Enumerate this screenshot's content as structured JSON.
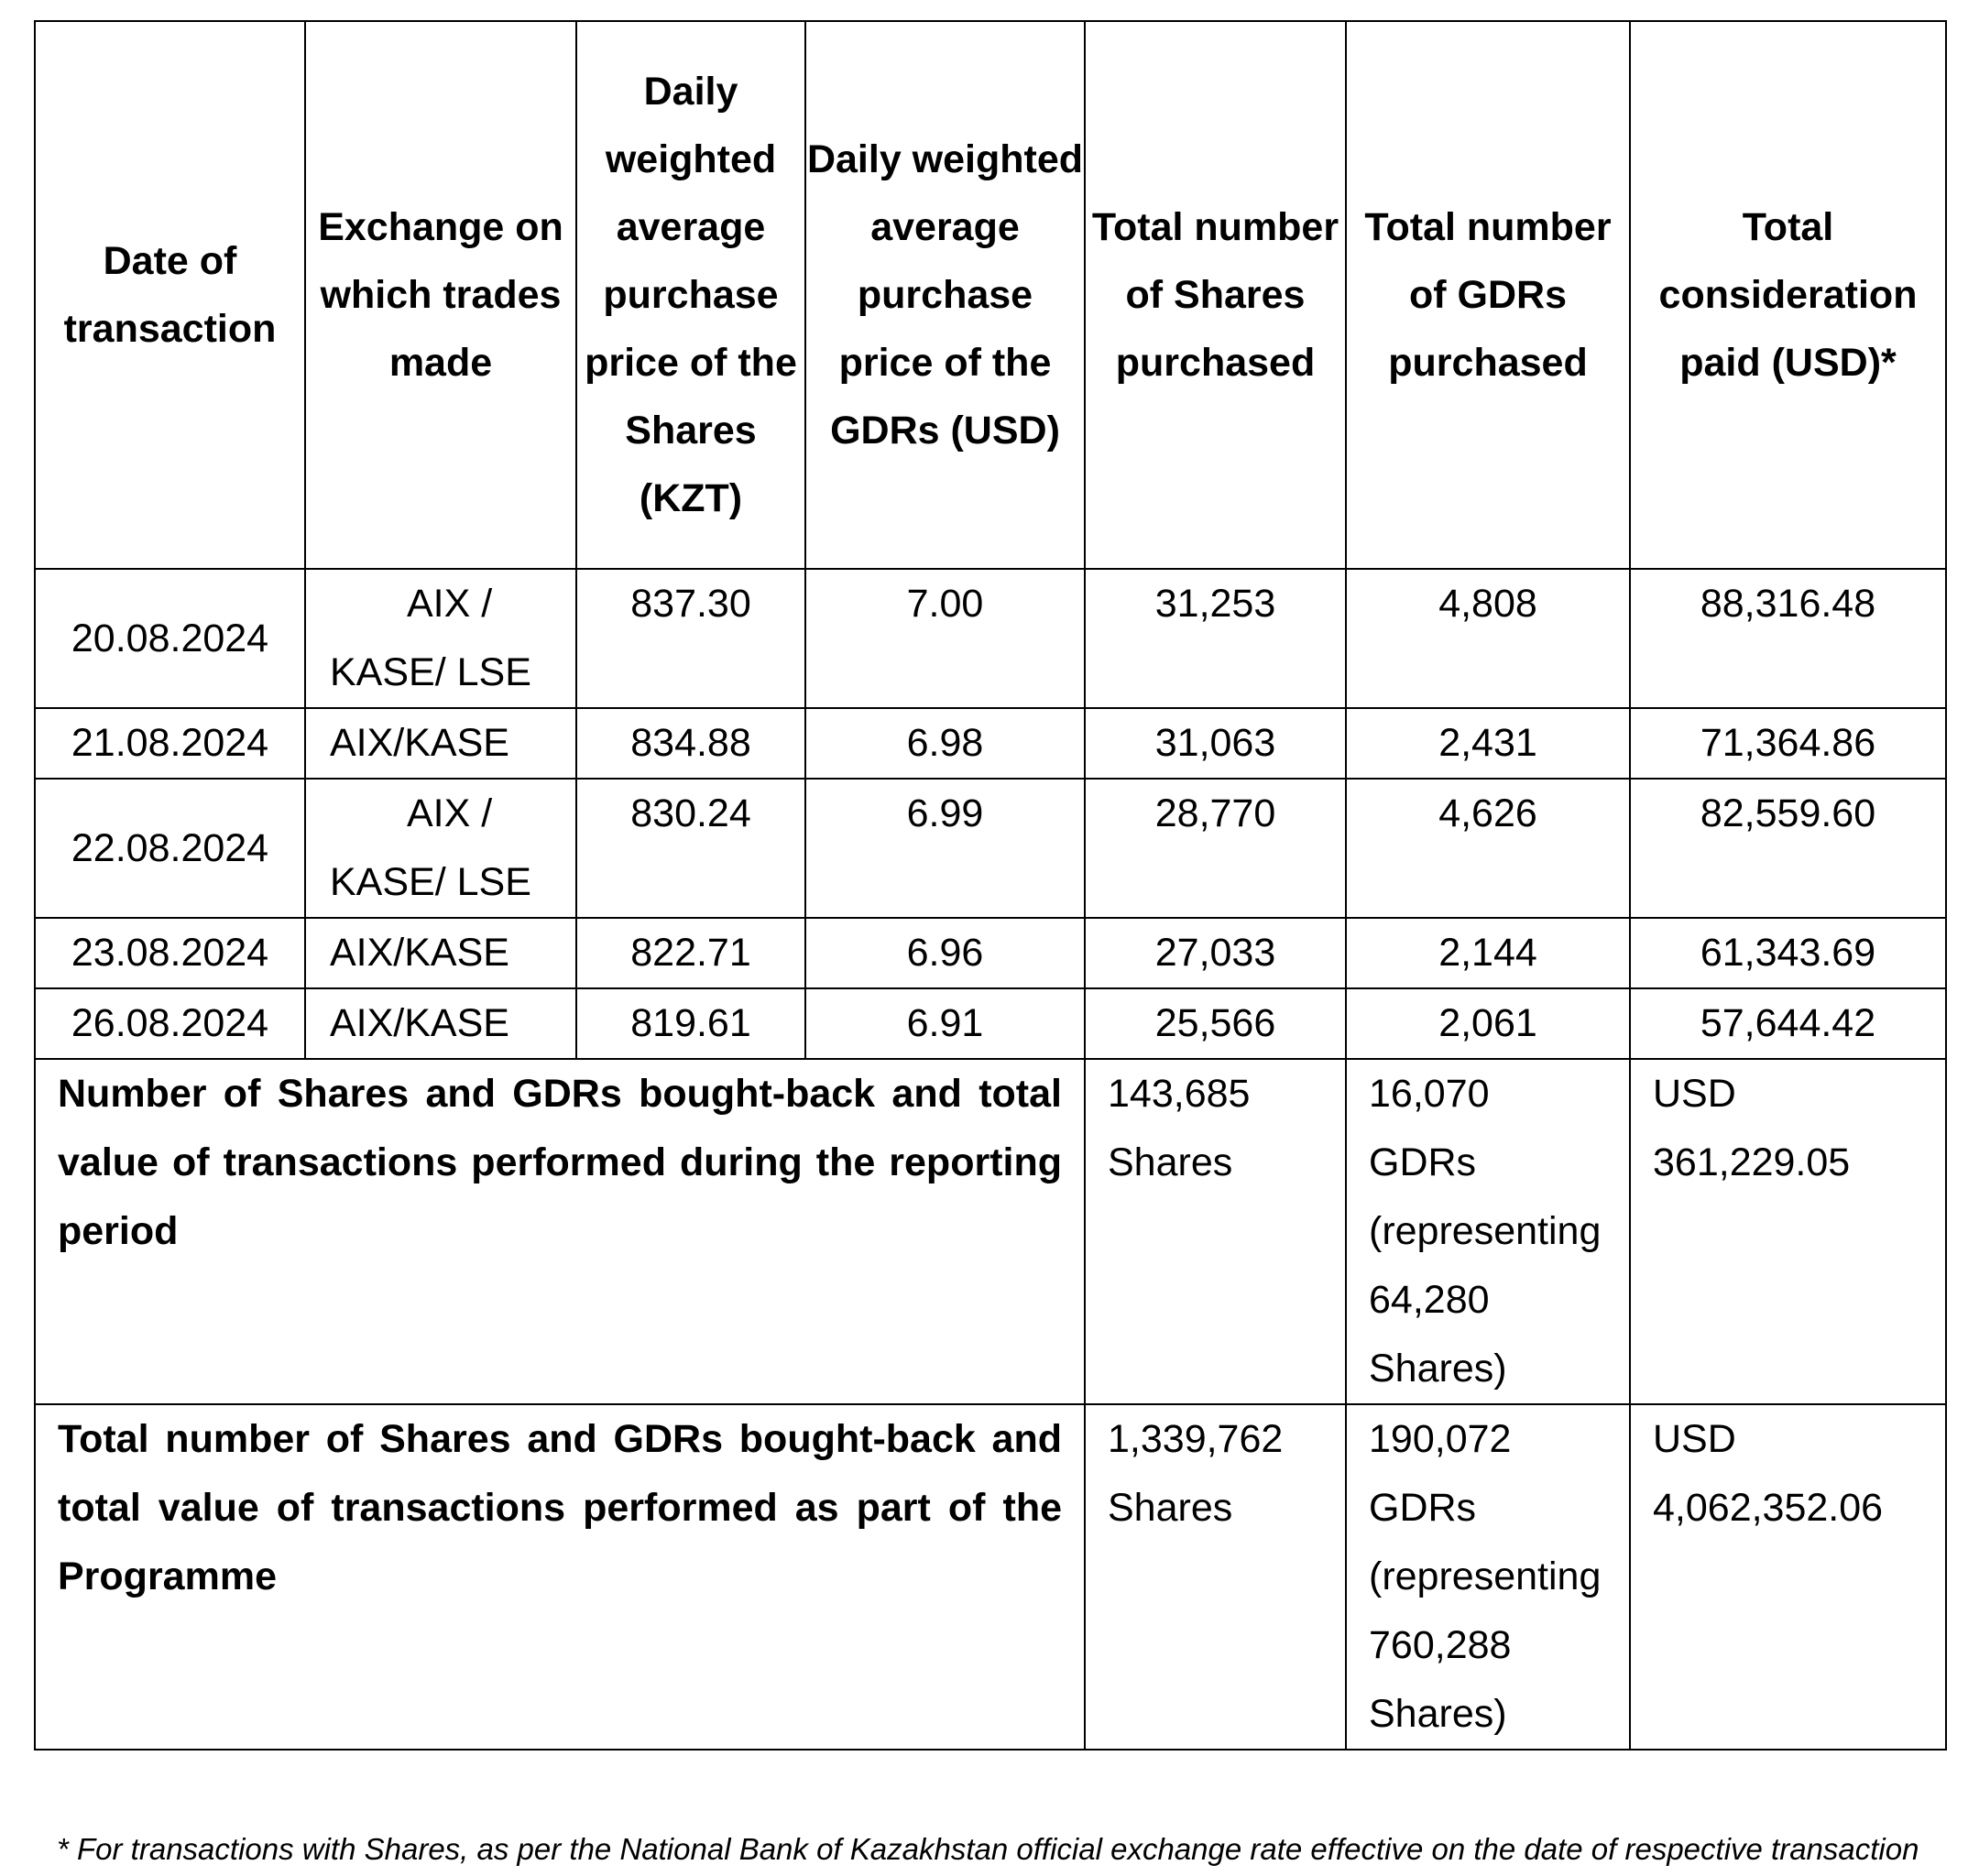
{
  "headers": [
    "Date of transaction",
    "Exchange on which trades made",
    "Daily weighted average purchase price of the Shares (KZT)",
    "Daily weighted average purchase price of the GDRs (USD)",
    "Total number of Shares purchased",
    "Total number of GDRs purchased",
    "Total consideration paid (USD)*"
  ],
  "rows": [
    {
      "date": "20.08.2024",
      "exchange_line1": "AIX /",
      "exchange_line2": "KASE/ LSE",
      "share_price": "837.30",
      "gdr_price": "7.00",
      "shares": "31,253",
      "gdrs": "4,808",
      "consideration": "88,316.48"
    },
    {
      "date": "21.08.2024",
      "exchange": "AIX/KASE",
      "share_price": "834.88",
      "gdr_price": "6.98",
      "shares": "31,063",
      "gdrs": "2,431",
      "consideration": "71,364.86"
    },
    {
      "date": "22.08.2024",
      "exchange_line1": "AIX /",
      "exchange_line2": "KASE/ LSE",
      "share_price": "830.24",
      "gdr_price": "6.99",
      "shares": "28,770",
      "gdrs": "4,626",
      "consideration": "82,559.60"
    },
    {
      "date": "23.08.2024",
      "exchange": "AIX/KASE",
      "share_price": "822.71",
      "gdr_price": "6.96",
      "shares": "27,033",
      "gdrs": "2,144",
      "consideration": "61,343.69"
    },
    {
      "date": "26.08.2024",
      "exchange": "AIX/KASE",
      "share_price": "819.61",
      "gdr_price": "6.91",
      "shares": "25,566",
      "gdrs": "2,061",
      "consideration": "57,644.42"
    }
  ],
  "summary": [
    {
      "label": "Number of Shares and GDRs bought-back and total value of transactions performed during the reporting period",
      "shares_number": "143,685",
      "shares_unit": "Shares",
      "gdrs_number": "16,070",
      "gdrs_unit": "GDRs",
      "gdrs_representing": "(representing",
      "gdrs_rep_number": "64,280",
      "gdrs_rep_unit": "Shares)",
      "currency": "USD",
      "total": "361,229.05"
    },
    {
      "label": "Total number of Shares and GDRs bought-back and total value of transactions performed as part of the Programme",
      "shares_number": "1,339,762",
      "shares_unit": "Shares",
      "gdrs_number": "190,072",
      "gdrs_unit": "GDRs",
      "gdrs_representing": "(representing",
      "gdrs_rep_number": "760,288",
      "gdrs_rep_unit": "Shares)",
      "currency": "USD",
      "total": "4,062,352.06"
    }
  ],
  "footnote": "* For transactions with Shares, as per the National Bank of Kazakhstan official exchange rate effective on the date of respective transaction"
}
